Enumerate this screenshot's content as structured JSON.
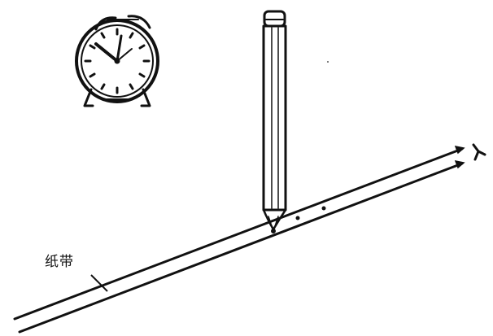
{
  "diagram": {
    "labels": {
      "paper_tape": "纸带"
    },
    "icons": [
      "alarm-clock-icon",
      "pencil-icon",
      "arrow-icon"
    ],
    "colors": {
      "ink": "#111111",
      "paper": "#ffffff"
    }
  }
}
